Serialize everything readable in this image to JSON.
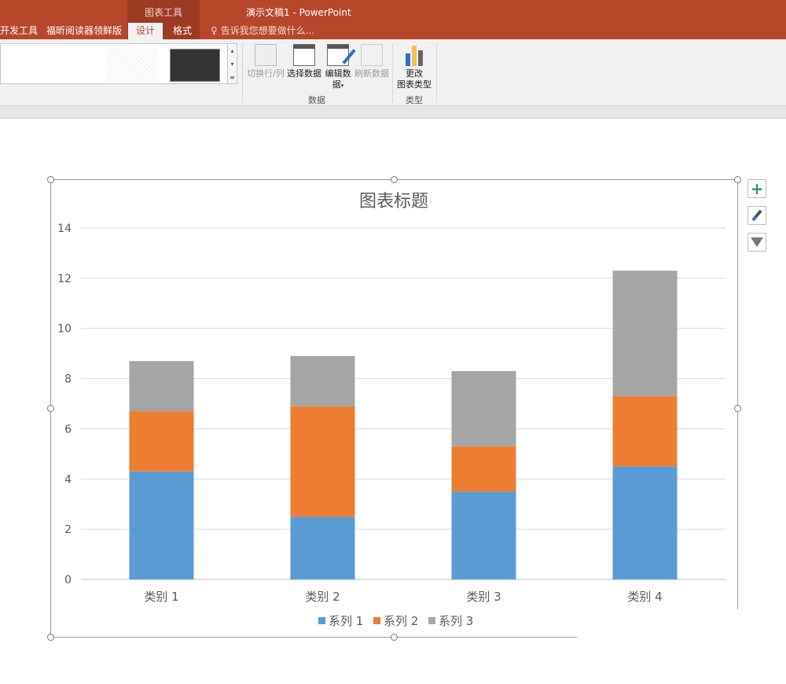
{
  "window": {
    "context_tab_group": "图表工具",
    "title": "演示文稿1 - PowerPoint"
  },
  "tabs": [
    {
      "label": "开发工具"
    },
    {
      "label": "福昕阅读器领鲜版"
    },
    {
      "label": "设计",
      "active": true
    },
    {
      "label": "格式"
    }
  ],
  "tell_me": "告诉我您想要做什么...",
  "ribbon": {
    "data_group": {
      "label": "数据",
      "buttons": [
        {
          "label": "切换行/列",
          "enabled": false
        },
        {
          "label": "选择数据",
          "enabled": true
        },
        {
          "label": "编辑数据",
          "enabled": true
        },
        {
          "label": "刷新数据",
          "enabled": false
        }
      ]
    },
    "type_group": {
      "label": "类型",
      "buttons": [
        {
          "label": "更改图表类型",
          "line1": "更改",
          "line2": "图表类型"
        }
      ]
    },
    "edit_data_line1": "编辑数",
    "edit_data_line2": "据"
  },
  "side_buttons": [
    {
      "icon": "plus-icon"
    },
    {
      "icon": "brush-icon"
    },
    {
      "icon": "filter-icon"
    }
  ],
  "colors": {
    "series1": "#5b9bd5",
    "series2": "#ed7d31",
    "series3": "#a5a5a5",
    "brand": "#b7472a"
  },
  "chart_data": {
    "type": "bar",
    "stacked": true,
    "title": "图表标题",
    "categories": [
      "类别 1",
      "类别 2",
      "类别 3",
      "类别 4"
    ],
    "series": [
      {
        "name": "系列 1",
        "values": [
          4.3,
          2.5,
          3.5,
          4.5
        ]
      },
      {
        "name": "系列 2",
        "values": [
          2.4,
          4.4,
          1.8,
          2.8
        ]
      },
      {
        "name": "系列 3",
        "values": [
          2,
          2,
          3,
          5
        ]
      }
    ],
    "ylim": [
      0,
      14
    ],
    "yticks": [
      0,
      2,
      4,
      6,
      8,
      10,
      12,
      14
    ],
    "grid": true,
    "legend": "bottom"
  }
}
